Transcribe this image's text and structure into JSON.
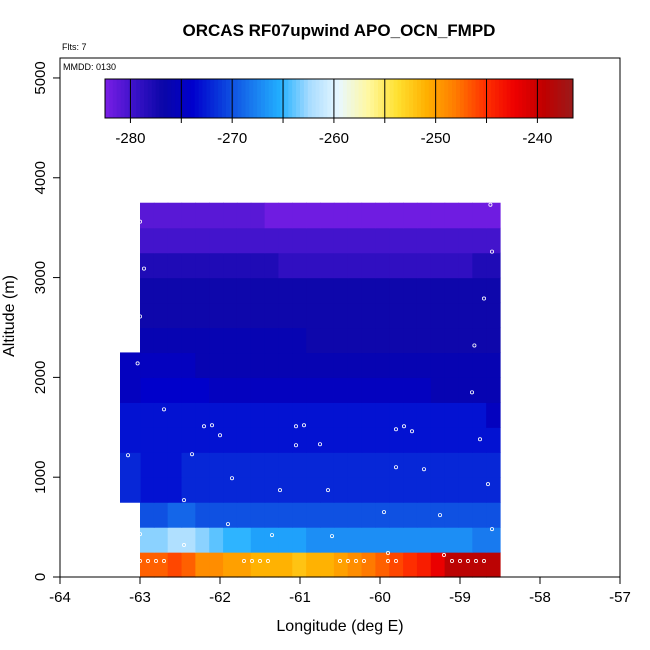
{
  "chart_data": {
    "type": "heatmap",
    "title": "ORCAS RF07upwind APO_OCN_FMPD",
    "xlabel": "Longitude (deg E)",
    "ylabel": "Altitude (m)",
    "xlim": [
      -64,
      -57
    ],
    "ylim": [
      0,
      5200
    ],
    "x_ticks": [
      -64,
      -63,
      -62,
      -61,
      -60,
      -59,
      -58,
      -57
    ],
    "y_ticks": [
      0,
      1000,
      2000,
      3000,
      4000,
      5000
    ],
    "flights_label": "Flts: 7",
    "date_label": "MMDD: 0130",
    "colorbar": {
      "colors": [
        "#7a1ee6",
        "#3b12c8",
        "#0a06a8",
        "#0000cd",
        "#0a3cdc",
        "#1878ee",
        "#22b0ff",
        "#a8dcff",
        "#e8f8ff",
        "#fff8a0",
        "#ffe030",
        "#ffb000",
        "#ff7a00",
        "#ff3000",
        "#ee0000",
        "#c00000",
        "#9a1a1a"
      ],
      "range": [
        -282.5,
        -236.5
      ],
      "ticks": [
        -280,
        -270,
        -260,
        -250,
        -240
      ],
      "tick_labels": [
        "-280",
        "-270",
        "-260",
        "-250",
        "-240"
      ]
    },
    "grid_rows": [
      {
        "alt_bottom": 0,
        "alt_top": 250,
        "values": [
          -247,
          -247,
          -246,
          -247,
          -249,
          -249,
          -250,
          -250,
          -251,
          -251,
          -251,
          -252,
          -251,
          -251,
          -250,
          -249,
          -248,
          -247,
          -246,
          -245,
          -244,
          -242,
          -239,
          -239,
          -239,
          -239
        ]
      },
      {
        "alt_bottom": 250,
        "alt_top": 500,
        "values": [
          -263,
          -263,
          -262,
          -262,
          -263,
          -264,
          -265,
          -265,
          -266,
          -266,
          -266,
          -266,
          -267,
          -267,
          -267,
          -267,
          -267,
          -267,
          -267,
          -267,
          -267,
          -267,
          -267,
          -267,
          -268,
          -268
        ]
      },
      {
        "alt_bottom": 500,
        "alt_top": 750,
        "values": [
          -270,
          -270,
          -269,
          -269,
          -270,
          -270,
          -270,
          -270,
          -270,
          -270,
          -270,
          -270,
          -270,
          -270,
          -270,
          -270,
          -270,
          -270,
          -270,
          -270,
          -270,
          -270,
          -270,
          -270,
          -270,
          -270
        ]
      },
      {
        "alt_bottom": 750,
        "alt_top": 1000,
        "values": [
          -273,
          -273,
          -273,
          -272,
          -272,
          -272,
          -272,
          -272,
          -272,
          -272,
          -272,
          -272,
          -272,
          -272,
          -272,
          -272,
          -272,
          -272,
          -272,
          -272,
          -272,
          -272,
          -272,
          -272,
          -272,
          -272
        ]
      },
      {
        "alt_bottom": 1000,
        "alt_top": 1250,
        "values": [
          -273,
          -273,
          -273,
          -272,
          -272,
          -272,
          -272,
          -272,
          -272,
          -272,
          -272,
          -272,
          -272,
          -272,
          -272,
          -272,
          -272,
          -272,
          -272,
          -272,
          -272,
          -272,
          -272,
          -272,
          -272,
          -272
        ]
      },
      {
        "alt_bottom": 1250,
        "alt_top": 1500,
        "values": [
          -273,
          -273,
          -273,
          -273,
          -273,
          -273,
          -273,
          -273,
          -273,
          -273,
          -273,
          -273,
          -273,
          -273,
          -273,
          -273,
          -273,
          -273,
          -273,
          -273,
          -273,
          -273,
          -273,
          -273,
          -273,
          -273
        ]
      },
      {
        "alt_bottom": 1500,
        "alt_top": 1750,
        "values": [
          -273,
          -273,
          -273,
          -273,
          -273,
          -273,
          -273,
          -273,
          -273,
          -273,
          -273,
          -273,
          -273,
          -273,
          -273,
          -273,
          -273,
          -273,
          -273,
          -273,
          -273,
          -273,
          -273,
          -273,
          -273,
          -275
        ]
      },
      {
        "alt_bottom": 1750,
        "alt_top": 2000,
        "values": [
          -274,
          -274,
          -274,
          -274,
          -274,
          -275,
          -275,
          -275,
          -275,
          -275,
          -275,
          -275,
          -275,
          -275,
          -275,
          -275,
          -275,
          -275,
          -275,
          -275,
          -275,
          -276,
          -276,
          -276,
          -276,
          -276
        ]
      },
      {
        "alt_bottom": 2000,
        "alt_top": 2250,
        "values": [
          -275,
          -275,
          -275,
          -275,
          -276,
          -276,
          -276,
          -276,
          -276,
          -276,
          -276,
          -276,
          -276,
          -276,
          -276,
          -276,
          -276,
          -276,
          -276,
          -276,
          -276,
          -276,
          -276,
          -276,
          -276,
          -276
        ]
      },
      {
        "alt_bottom": 2250,
        "alt_top": 2500,
        "values": [
          -276,
          -276,
          -276,
          -276,
          -276,
          -276,
          -276,
          -276,
          -276,
          -276,
          -276,
          -276,
          -277,
          -277,
          -277,
          -277,
          -277,
          -277,
          -277,
          -277,
          -277,
          -277,
          -277,
          -277,
          -277,
          -277
        ]
      },
      {
        "alt_bottom": 2500,
        "alt_top": 2750,
        "values": [
          -277,
          -277,
          -277,
          -277,
          -277,
          -277,
          -277,
          -277,
          -277,
          -277,
          -277,
          -277,
          -277,
          -277,
          -277,
          -277,
          -277,
          -277,
          -277,
          -277,
          -277,
          -277,
          -277,
          -277,
          -277,
          -277
        ]
      },
      {
        "alt_bottom": 2750,
        "alt_top": 3000,
        "values": [
          -277,
          -277,
          -277,
          -277,
          -277,
          -277,
          -277,
          -277,
          -277,
          -277,
          -277,
          -277,
          -277,
          -277,
          -277,
          -277,
          -277,
          -277,
          -277,
          -277,
          -277,
          -277,
          -277,
          -277,
          -277,
          -277
        ]
      },
      {
        "alt_bottom": 3000,
        "alt_top": 3250,
        "values": [
          -278,
          -278,
          -278,
          -278,
          -278,
          -278,
          -278,
          -278,
          -278,
          -278,
          -279,
          -279,
          -279,
          -279,
          -279,
          -279,
          -279,
          -279,
          -279,
          -279,
          -279,
          -279,
          -279,
          -279,
          -278,
          -278
        ]
      },
      {
        "alt_bottom": 3250,
        "alt_top": 3500,
        "values": [
          -280,
          -280,
          -280,
          -280,
          -280,
          -280,
          -280,
          -280,
          -280,
          -280,
          -280,
          -280,
          -280,
          -280,
          -280,
          -280,
          -280,
          -280,
          -280,
          -280,
          -280,
          -280,
          -280,
          -280,
          -280,
          -280
        ]
      },
      {
        "alt_bottom": 3500,
        "alt_top": 3750,
        "values": [
          -281,
          -281,
          -281,
          -281,
          -281,
          -281,
          -281,
          -281,
          -281,
          -282,
          -282,
          -282,
          -282,
          -282,
          -282,
          -282,
          -282,
          -282,
          -282,
          -282,
          -282,
          -282,
          -282,
          -282,
          -282,
          -282
        ]
      }
    ],
    "grid_lon_start": -63,
    "grid_lon_step": 0.175,
    "grid_lon_end": -58.5,
    "extra_cells": [
      {
        "lon_start": -63.25,
        "lon_end": -63.0,
        "alt_bottom": 750,
        "alt_top": 1250,
        "value": -272
      },
      {
        "lon_start": -63.25,
        "lon_end": -63.0,
        "alt_bottom": 1250,
        "alt_top": 1750,
        "value": -273
      },
      {
        "lon_start": -63.25,
        "lon_end": -63.0,
        "alt_bottom": 1750,
        "alt_top": 2250,
        "value": -275
      }
    ],
    "sample_points": [
      [
        -63.0,
        3560
      ],
      [
        -63.0,
        2610
      ],
      [
        -62.95,
        3090
      ],
      [
        -63.03,
        2140
      ],
      [
        -62.7,
        1680
      ],
      [
        -63.15,
        1220
      ],
      [
        -62.2,
        1510
      ],
      [
        -62.1,
        1520
      ],
      [
        -62.0,
        1420
      ],
      [
        -62.35,
        1230
      ],
      [
        -61.85,
        990
      ],
      [
        -62.45,
        770
      ],
      [
        -61.05,
        1510
      ],
      [
        -60.95,
        1520
      ],
      [
        -61.05,
        1320
      ],
      [
        -60.75,
        1330
      ],
      [
        -60.65,
        870
      ],
      [
        -61.25,
        870
      ],
      [
        -59.8,
        1480
      ],
      [
        -59.7,
        1510
      ],
      [
        -59.6,
        1460
      ],
      [
        -59.8,
        1100
      ],
      [
        -59.45,
        1080
      ],
      [
        -58.75,
        1380
      ],
      [
        -58.85,
        1850
      ],
      [
        -58.82,
        2320
      ],
      [
        -58.7,
        2790
      ],
      [
        -58.6,
        3260
      ],
      [
        -58.62,
        3730
      ],
      [
        -58.65,
        930
      ],
      [
        -58.6,
        480
      ],
      [
        -59.25,
        620
      ],
      [
        -59.95,
        650
      ],
      [
        -61.9,
        530
      ],
      [
        -61.35,
        420
      ],
      [
        -60.6,
        410
      ],
      [
        -63.0,
        430
      ],
      [
        -62.45,
        320
      ],
      [
        -59.9,
        240
      ],
      [
        -59.2,
        220
      ],
      [
        -63.0,
        160
      ],
      [
        -62.9,
        160
      ],
      [
        -62.8,
        160
      ],
      [
        -62.7,
        160
      ],
      [
        -61.7,
        160
      ],
      [
        -61.6,
        160
      ],
      [
        -61.5,
        160
      ],
      [
        -61.4,
        160
      ],
      [
        -60.5,
        160
      ],
      [
        -60.4,
        160
      ],
      [
        -60.3,
        160
      ],
      [
        -60.2,
        160
      ],
      [
        -59.9,
        160
      ],
      [
        -59.8,
        160
      ],
      [
        -59.1,
        160
      ],
      [
        -59.0,
        160
      ],
      [
        -58.9,
        160
      ],
      [
        -58.8,
        160
      ],
      [
        -58.7,
        160
      ]
    ]
  }
}
